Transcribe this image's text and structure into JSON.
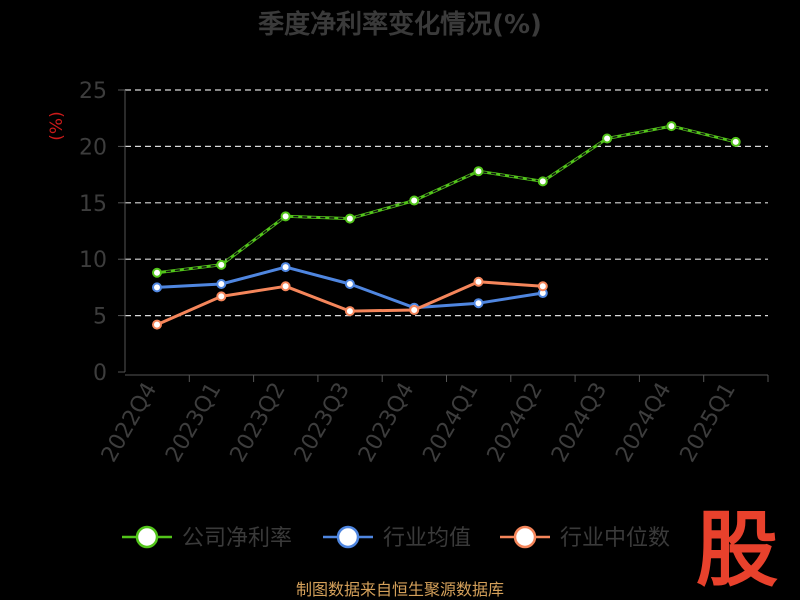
{
  "chart_data": {
    "type": "line",
    "title": "季度净利率变化情况(%)",
    "ylabel": "(%)",
    "xlabel": "",
    "categories": [
      "2022Q4",
      "2023Q1",
      "2023Q2",
      "2023Q3",
      "2023Q4",
      "2024Q1",
      "2024Q2",
      "2024Q3",
      "2024Q4",
      "2025Q1"
    ],
    "ylim": [
      0,
      25
    ],
    "yticks": [
      "0",
      "5",
      "10",
      "15",
      "20",
      "25"
    ],
    "grid": true,
    "legend_position": "bottom",
    "series": [
      {
        "name": "公司净利率",
        "color": "#52c41a",
        "values": [
          8.8,
          9.5,
          13.8,
          13.6,
          15.2,
          17.8,
          16.9,
          20.7,
          21.8,
          20.4
        ]
      },
      {
        "name": "行业均值",
        "color": "#4f86e0",
        "values": [
          7.5,
          7.8,
          9.3,
          7.8,
          5.7,
          6.1,
          7.0,
          null,
          null,
          null
        ]
      },
      {
        "name": "行业中位数",
        "color": "#f5865b",
        "values": [
          4.2,
          6.7,
          7.6,
          5.4,
          5.5,
          8.0,
          7.6,
          null,
          null,
          null
        ]
      }
    ]
  },
  "watermark": "股",
  "source": "制图数据来自恒生聚源数据库"
}
